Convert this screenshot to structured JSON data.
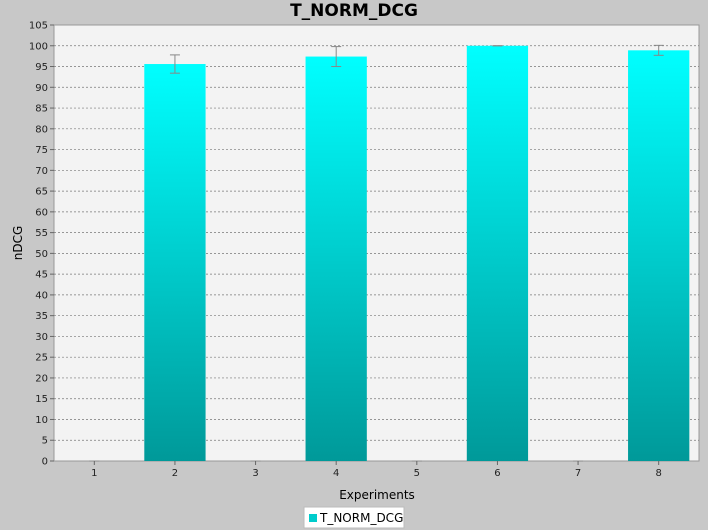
{
  "chart_data": {
    "type": "bar",
    "title": "T_NORM_DCG",
    "xlabel": "Experiments",
    "ylabel": "nDCG",
    "categories": [
      "1",
      "2",
      "3",
      "4",
      "5",
      "6",
      "7",
      "8"
    ],
    "series": [
      {
        "name": "T_NORM_DCG",
        "values": [
          0,
          95.6,
          0,
          97.4,
          0,
          100,
          0,
          98.9
        ],
        "error": [
          0,
          2.2,
          0,
          2.4,
          0,
          0,
          0,
          1.2
        ]
      }
    ],
    "ylim": [
      0,
      105
    ],
    "yticks": [
      0,
      5,
      10,
      15,
      20,
      25,
      30,
      35,
      40,
      45,
      50,
      55,
      60,
      65,
      70,
      75,
      80,
      85,
      90,
      95,
      100,
      105
    ],
    "grid": true,
    "legend": "bottom-center",
    "colors": {
      "bar_top": "#00ffff",
      "bar_bottom": "#009999",
      "plot_background": "#f3f3f3",
      "page_background": "#c8c8c8",
      "error_bar": "#888888",
      "grid": "#777777"
    }
  }
}
